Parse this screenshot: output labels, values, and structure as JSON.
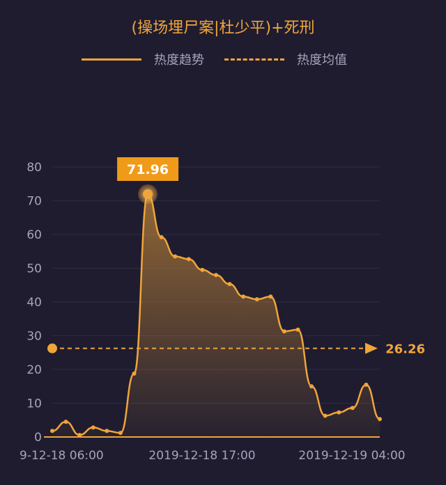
{
  "chart_data": {
    "type": "area",
    "title": "(操场埋尸案|杜少平)+死刑",
    "legend": [
      {
        "label": "热度趋势",
        "style": "solid"
      },
      {
        "label": "热度均值",
        "style": "dashed"
      }
    ],
    "legend_position": "top-center",
    "x_tick_labels": [
      "9-12-18 06:00",
      "2019-12-18 17:00",
      "2019-12-19 04:00"
    ],
    "y_ticks": [
      0,
      10,
      20,
      30,
      40,
      50,
      60,
      70,
      80
    ],
    "ylim": [
      0,
      80
    ],
    "grid": true,
    "series": [
      {
        "name": "热度趋势",
        "values": [
          1.8,
          4.5,
          0.6,
          2.8,
          1.8,
          1.2,
          18.8,
          71.96,
          59.2,
          53.5,
          52.7,
          49.5,
          48.0,
          45.3,
          41.6,
          40.8,
          41.6,
          31.3,
          31.8,
          15.0,
          6.3,
          7.3,
          8.6,
          15.5,
          5.3
        ]
      }
    ],
    "peak": {
      "value": "71.96"
    },
    "mean": {
      "value": 26.26,
      "label": "26.26"
    },
    "colors": {
      "accent": "#f0a53a",
      "background": "#1f1c30",
      "text": "#a7a3bb"
    }
  }
}
